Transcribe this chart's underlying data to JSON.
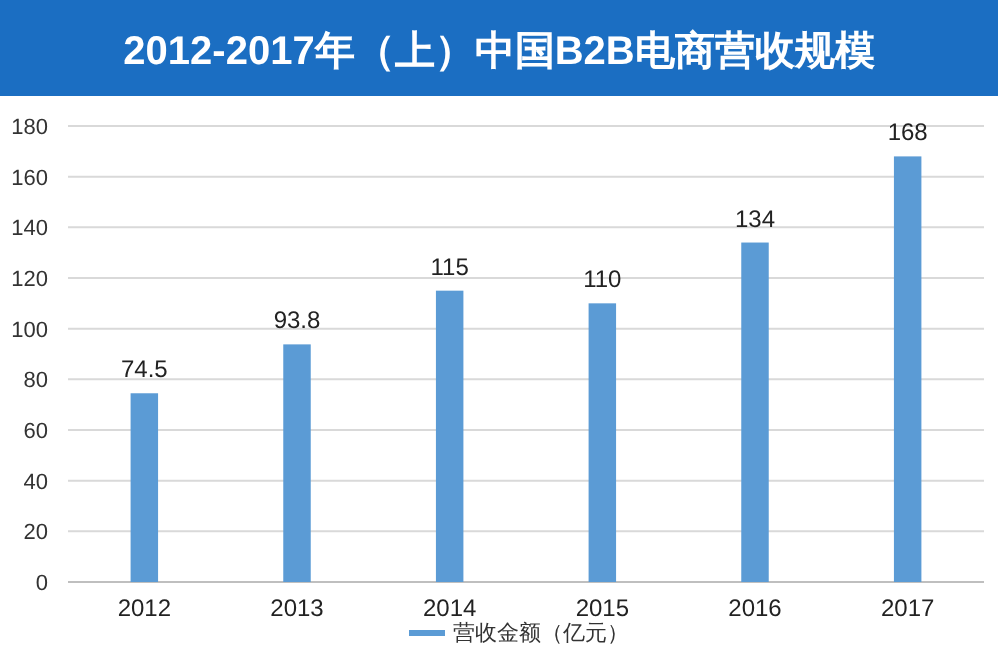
{
  "chart_data": {
    "type": "bar",
    "title": "2012-2017年（上）中国B2B电商营收规模",
    "categories": [
      "2012",
      "2013",
      "2014",
      "2015",
      "2016",
      "2017"
    ],
    "series": [
      {
        "name": "营收金额（亿元）",
        "color": "#5b9bd5",
        "values": [
          74.5,
          93.8,
          115,
          110,
          134,
          168
        ]
      }
    ],
    "ylim": [
      0,
      180
    ],
    "yticks": [
      0,
      20,
      40,
      60,
      80,
      100,
      120,
      140,
      160,
      180
    ],
    "grid": "y",
    "legend": "bottom",
    "data_labels": true
  }
}
